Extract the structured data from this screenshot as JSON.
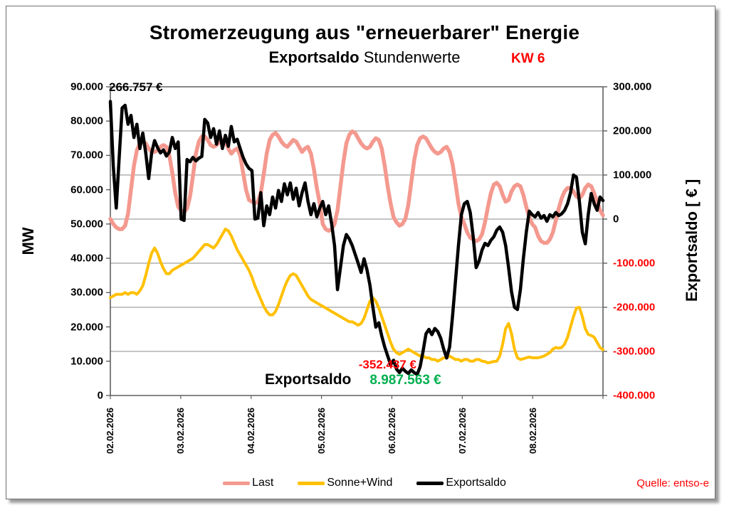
{
  "header": {
    "title": "Stromerzeugung aus \"erneuerbarer\" Energie",
    "subtitle_bold": "Exportsaldo",
    "subtitle_regular": " Stundenwerte",
    "week_badge": "KW 6"
  },
  "source_note": "Quelle: entso-e",
  "chart_data": {
    "type": "line",
    "title": "Stromerzeugung aus \"erneuerbarer\" Energie — Exportsaldo Stundenwerte, KW 6",
    "x_days": [
      "02.02.2026",
      "03.02.2026",
      "04.02.2026",
      "05.02.2026",
      "06.02.2026",
      "07.02.2026",
      "08.02.2026"
    ],
    "points_per_day": 24,
    "grid": "horizontal-only",
    "legend_position": "bottom-center",
    "axes": {
      "left": {
        "label": "MW",
        "min": 0,
        "max": 90000,
        "tick_step": 10000,
        "tick_labels": [
          "90.000",
          "80.000",
          "70.000",
          "60.000",
          "50.000",
          "40.000",
          "30.000",
          "20.000",
          "10.000",
          "0"
        ]
      },
      "right": {
        "label": "Exportsaldo [ € ]",
        "min": -400000,
        "max": 300000,
        "tick_step": 100000,
        "tick_labels": [
          "300.000",
          "200.000",
          "100.000",
          "0",
          "-100.000",
          "-200.000",
          "-300.000",
          "-400.000"
        ],
        "negative_tick_color": "#ff0000"
      }
    },
    "annotations": {
      "first_value": "266.757 €",
      "min_value": "-352.437 €",
      "sum_label": "Exportsaldo",
      "sum_value": "8.987.563 €"
    },
    "series": [
      {
        "name": "Last",
        "axis": "left",
        "color": "#f4998f",
        "stroke_width": 5.5,
        "values": [
          51500,
          50000,
          49000,
          48500,
          48500,
          49500,
          53000,
          60000,
          67000,
          71500,
          73500,
          74000,
          73500,
          72000,
          71000,
          71000,
          71500,
          72500,
          73000,
          72500,
          70000,
          65000,
          59000,
          55000,
          54000,
          53500,
          54500,
          58000,
          64000,
          70500,
          74000,
          75500,
          75500,
          74500,
          73000,
          72500,
          73000,
          74000,
          74500,
          74000,
          72000,
          70500,
          71500,
          72000,
          70000,
          65000,
          60000,
          57000,
          56500,
          56000,
          56500,
          59000,
          64500,
          70500,
          74500,
          76000,
          76500,
          75500,
          74000,
          73000,
          72500,
          73500,
          74500,
          74000,
          72500,
          71000,
          72000,
          72500,
          70500,
          66000,
          60500,
          56000,
          50000,
          48500,
          48000,
          48500,
          50000,
          54000,
          61000,
          68000,
          73500,
          76000,
          77000,
          76500,
          75000,
          73500,
          72500,
          72000,
          72500,
          74000,
          75000,
          74500,
          72000,
          67000,
          61000,
          56000,
          52000,
          50500,
          49500,
          50000,
          51500,
          55500,
          62000,
          68500,
          73000,
          75000,
          75500,
          75000,
          73500,
          72000,
          71000,
          70500,
          71000,
          72000,
          72500,
          71000,
          67500,
          62000,
          56000,
          52000,
          50000,
          47500,
          46000,
          45500,
          45000,
          45500,
          47000,
          50500,
          55000,
          59000,
          61500,
          62000,
          61000,
          58500,
          56500,
          57000,
          59500,
          61000,
          61500,
          61000,
          58500,
          55000,
          52000,
          50000,
          49000,
          46500,
          45000,
          44500,
          44500,
          45500,
          47500,
          51000,
          54500,
          57500,
          59500,
          60500,
          60500,
          59500,
          58000,
          57500,
          58500,
          60500,
          61500,
          61000,
          59000,
          56500,
          54000,
          52500
        ]
      },
      {
        "name": "Sonne+Wind",
        "axis": "left",
        "color": "#ffc000",
        "stroke_width": 4,
        "values": [
          28500,
          29000,
          29500,
          29500,
          29500,
          30000,
          29500,
          30000,
          30000,
          29500,
          30500,
          32000,
          35000,
          38500,
          41500,
          43000,
          41500,
          39000,
          37000,
          35500,
          35500,
          36500,
          37000,
          37500,
          38000,
          38500,
          39000,
          39500,
          40000,
          41000,
          42000,
          43000,
          44000,
          44000,
          43500,
          43000,
          44000,
          45500,
          47000,
          48500,
          48000,
          46500,
          44500,
          42500,
          41000,
          39500,
          38000,
          36500,
          34500,
          32000,
          30000,
          28000,
          26000,
          24500,
          23500,
          23500,
          24500,
          26500,
          29000,
          31500,
          33500,
          35000,
          35500,
          35000,
          33500,
          32000,
          30500,
          29000,
          28000,
          27500,
          27000,
          26500,
          26000,
          25500,
          25000,
          24500,
          24000,
          23500,
          23000,
          22500,
          22000,
          21500,
          21500,
          21000,
          20500,
          21000,
          22500,
          25000,
          27500,
          28500,
          27500,
          25500,
          23000,
          20500,
          18000,
          15500,
          13500,
          12500,
          12000,
          12500,
          13000,
          13500,
          13000,
          12500,
          12000,
          11500,
          11500,
          11000,
          11000,
          10500,
          10500,
          10000,
          10500,
          11000,
          11000,
          11500,
          11000,
          10500,
          10500,
          10000,
          10500,
          10500,
          10000,
          10000,
          10500,
          10500,
          10000,
          9900,
          9500,
          9700,
          9900,
          10000,
          11500,
          15000,
          19500,
          21000,
          18000,
          13500,
          11000,
          10500,
          10700,
          11000,
          11200,
          11000,
          11000,
          11000,
          11200,
          11500,
          12000,
          12500,
          13500,
          14000,
          13800,
          14000,
          15000,
          17000,
          20000,
          23000,
          25500,
          25700,
          23000,
          19500,
          17800,
          17500,
          17000,
          15500,
          14000,
          13300
        ]
      },
      {
        "name": "Exportsaldo",
        "axis": "right",
        "color": "#000000",
        "stroke_width": 4.5,
        "values": [
          266757,
          120000,
          25000,
          140000,
          252000,
          258000,
          215000,
          235000,
          185000,
          215000,
          160000,
          195000,
          150000,
          92000,
          150000,
          178000,
          162000,
          150000,
          157000,
          143000,
          152000,
          185000,
          160000,
          175000,
          0,
          -3000,
          135000,
          130000,
          140000,
          132000,
          138000,
          142000,
          226000,
          218000,
          185000,
          205000,
          170000,
          200000,
          160000,
          190000,
          165000,
          210000,
          175000,
          181000,
          160000,
          140000,
          125000,
          115000,
          110000,
          0,
          2000,
          60000,
          -15000,
          30000,
          10000,
          50000,
          25000,
          65000,
          40000,
          80000,
          55000,
          82000,
          45000,
          70000,
          30000,
          60000,
          82000,
          40000,
          10000,
          35000,
          5000,
          25000,
          40000,
          10000,
          30000,
          -10000,
          -60000,
          -160000,
          -110000,
          -60000,
          -35000,
          -45000,
          -60000,
          -80000,
          -100000,
          -121000,
          -90000,
          -115000,
          -150000,
          -200000,
          -245000,
          -235000,
          -265000,
          -290000,
          -310000,
          -330000,
          -320000,
          -340000,
          -348000,
          -338000,
          -345000,
          -350000,
          -342000,
          -348000,
          -352437,
          -335000,
          -300000,
          -260000,
          -250000,
          -262000,
          -248000,
          -255000,
          -270000,
          -295000,
          -315000,
          -290000,
          -220000,
          -140000,
          -60000,
          10000,
          35000,
          40000,
          15000,
          -40000,
          -110000,
          -95000,
          -70000,
          -55000,
          -60000,
          -48000,
          -40000,
          -25000,
          -18000,
          -30000,
          -60000,
          -110000,
          -165000,
          -200000,
          -205000,
          -160000,
          -90000,
          -30000,
          18000,
          10000,
          5000,
          15000,
          2000,
          8000,
          -5000,
          10000,
          5000,
          15000,
          8000,
          12000,
          20000,
          35000,
          60000,
          100000,
          95000,
          40000,
          -30000,
          -56000,
          10000,
          58000,
          35000,
          20000,
          50000,
          42000
        ]
      }
    ],
    "legend": [
      "Last",
      "Sonne+Wind",
      "Exportsaldo"
    ]
  },
  "colors": {
    "grid": "#8a8a8a",
    "plot_border": "#5f5f5f",
    "negative_axis_text": "#ff0000",
    "annotation_min": "#ff0000",
    "annotation_sum": "#00b050",
    "source_note": "#ff0000"
  }
}
